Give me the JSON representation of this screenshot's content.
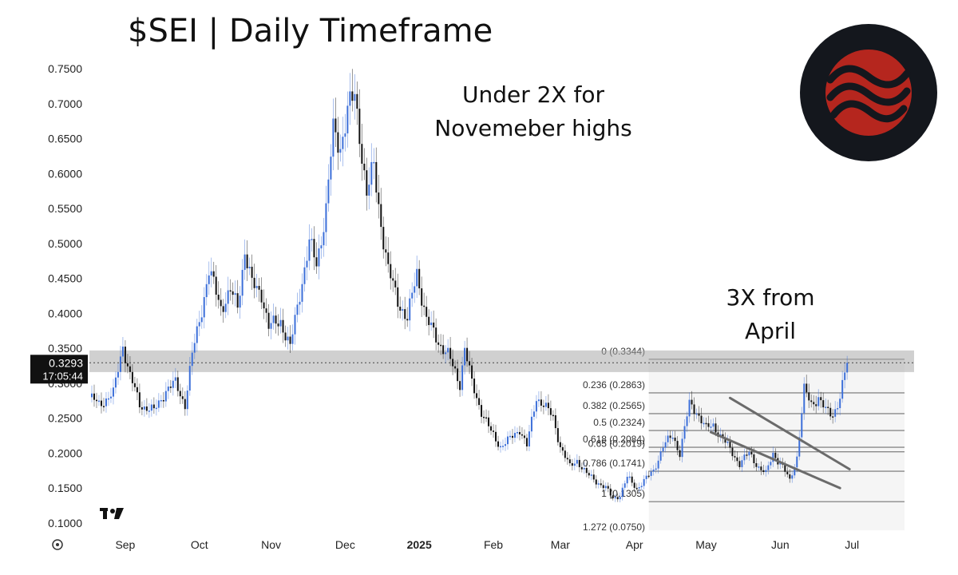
{
  "chart_data": {
    "type": "candlestick",
    "title": "$SEI | Daily Timeframe",
    "annotations": [
      "Under 2X for",
      "Novemeber highs",
      "3X from",
      "April"
    ],
    "price_scale": {
      "ticks": [
        "0.7500",
        "0.7000",
        "0.6500",
        "0.6000",
        "0.5500",
        "0.5000",
        "0.4500",
        "0.4000",
        "0.3500",
        "0.3000",
        "0.2500",
        "0.2000",
        "0.1500",
        "0.1000"
      ],
      "range": [
        0.085,
        0.78
      ]
    },
    "time_scale": {
      "labels": [
        "Sep",
        "Oct",
        "Nov",
        "Dec",
        "2025",
        "Feb",
        "Mar",
        "Apr",
        "May",
        "Jun",
        "Jul"
      ],
      "label_day_index": [
        15,
        46,
        76,
        107,
        138,
        169,
        197,
        228,
        258,
        289,
        319
      ],
      "total_days": 345
    },
    "current_price": {
      "price": "0.3293",
      "timer": "17:05:44",
      "value": 0.3293
    },
    "resistance_zone": [
      0.316,
      0.347
    ],
    "fib_levels": [
      {
        "label": "0 (0.3344)",
        "value": 0.3344
      },
      {
        "label": "0.236 (0.2863)",
        "value": 0.2863
      },
      {
        "label": "0.382 (0.2565)",
        "value": 0.2565
      },
      {
        "label": "0.5 (0.2324)",
        "value": 0.2324
      },
      {
        "label": "0.618 (0.2084)",
        "value": 0.2084
      },
      {
        "label": "0.65 (0.2019)",
        "value": 0.2019
      },
      {
        "label": "0.786 (0.1741)",
        "value": 0.1741
      },
      {
        "label": "1 (0.1305)",
        "value": 0.1305
      },
      {
        "label": "1.272 (0.0750)",
        "value": 0.075
      }
    ],
    "fib_day_range": [
      235,
      345
    ],
    "wedge_lines": [
      {
        "from": [
          268,
          0.279
        ],
        "to": [
          318,
          0.177
        ]
      },
      {
        "from": [
          260,
          0.23
        ],
        "to": [
          314,
          0.15
        ]
      }
    ],
    "anchors": [
      [
        0,
        0.28
      ],
      [
        4,
        0.27
      ],
      [
        10,
        0.285
      ],
      [
        14,
        0.355
      ],
      [
        17,
        0.31
      ],
      [
        21,
        0.27
      ],
      [
        27,
        0.26
      ],
      [
        32,
        0.29
      ],
      [
        36,
        0.3
      ],
      [
        40,
        0.27
      ],
      [
        43,
        0.34
      ],
      [
        46,
        0.39
      ],
      [
        50,
        0.46
      ],
      [
        55,
        0.41
      ],
      [
        59,
        0.43
      ],
      [
        62,
        0.41
      ],
      [
        65,
        0.49
      ],
      [
        68,
        0.44
      ],
      [
        72,
        0.43
      ],
      [
        75,
        0.38
      ],
      [
        80,
        0.39
      ],
      [
        84,
        0.35
      ],
      [
        88,
        0.43
      ],
      [
        92,
        0.5
      ],
      [
        95,
        0.47
      ],
      [
        99,
        0.55
      ],
      [
        102,
        0.66
      ],
      [
        105,
        0.64
      ],
      [
        108,
        0.69
      ],
      [
        111,
        0.71
      ],
      [
        113,
        0.66
      ],
      [
        116,
        0.57
      ],
      [
        119,
        0.61
      ],
      [
        122,
        0.53
      ],
      [
        125,
        0.46
      ],
      [
        129,
        0.42
      ],
      [
        133,
        0.39
      ],
      [
        137,
        0.46
      ],
      [
        141,
        0.39
      ],
      [
        146,
        0.36
      ],
      [
        150,
        0.34
      ],
      [
        155,
        0.3
      ],
      [
        157,
        0.35
      ],
      [
        160,
        0.3
      ],
      [
        164,
        0.26
      ],
      [
        168,
        0.23
      ],
      [
        172,
        0.21
      ],
      [
        176,
        0.22
      ],
      [
        180,
        0.235
      ],
      [
        183,
        0.21
      ],
      [
        187,
        0.28
      ],
      [
        190,
        0.27
      ],
      [
        194,
        0.25
      ],
      [
        197,
        0.21
      ],
      [
        201,
        0.18
      ],
      [
        204,
        0.19
      ],
      [
        208,
        0.17
      ],
      [
        212,
        0.16
      ],
      [
        216,
        0.15
      ],
      [
        219,
        0.135
      ],
      [
        222,
        0.14
      ],
      [
        225,
        0.165
      ],
      [
        229,
        0.15
      ],
      [
        232,
        0.16
      ],
      [
        236,
        0.175
      ],
      [
        240,
        0.21
      ],
      [
        244,
        0.225
      ],
      [
        247,
        0.2
      ],
      [
        251,
        0.27
      ],
      [
        254,
        0.26
      ],
      [
        258,
        0.235
      ],
      [
        261,
        0.24
      ],
      [
        265,
        0.22
      ],
      [
        269,
        0.2
      ],
      [
        272,
        0.185
      ],
      [
        276,
        0.2
      ],
      [
        280,
        0.18
      ],
      [
        283,
        0.17
      ],
      [
        286,
        0.2
      ],
      [
        290,
        0.18
      ],
      [
        293,
        0.16
      ],
      [
        296,
        0.195
      ],
      [
        299,
        0.29
      ],
      [
        302,
        0.27
      ],
      [
        305,
        0.28
      ],
      [
        308,
        0.26
      ],
      [
        311,
        0.255
      ],
      [
        314,
        0.28
      ],
      [
        317,
        0.329
      ]
    ]
  }
}
